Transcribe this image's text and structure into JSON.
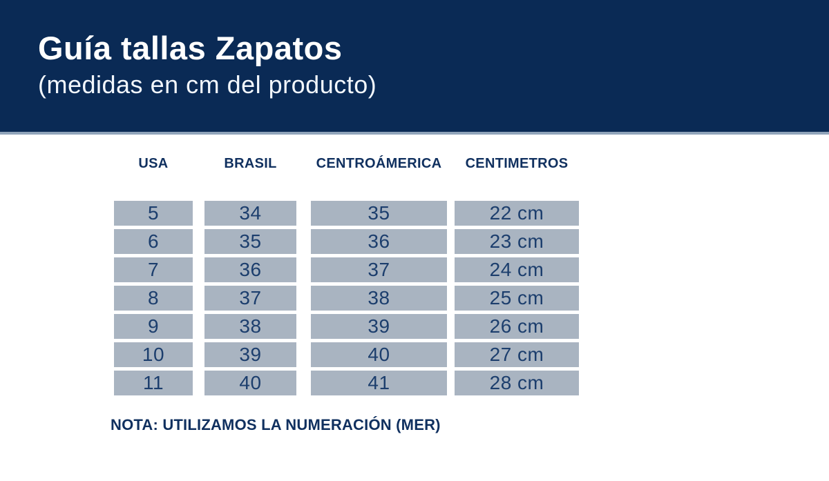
{
  "header": {
    "title": "Guía tallas Zapatos",
    "subtitle": "(medidas en cm del producto)"
  },
  "table": {
    "columns": [
      {
        "label": "USA",
        "values": [
          "5",
          "6",
          "7",
          "8",
          "9",
          "10",
          "11"
        ]
      },
      {
        "label": "BRASIL",
        "values": [
          "34",
          "35",
          "36",
          "37",
          "38",
          "39",
          "40"
        ]
      },
      {
        "label": "CENTROÁMERICA",
        "values": [
          "35",
          "36",
          "37",
          "38",
          "39",
          "40",
          "41"
        ]
      },
      {
        "label": "CENTIMETROS",
        "values": [
          "22 cm",
          "23 cm",
          "24 cm",
          "25 cm",
          "26 cm",
          "27 cm",
          "28 cm"
        ]
      }
    ]
  },
  "note": "NOTA: UTILIZAMOS LA NUMERACIÓN (MER)",
  "colors": {
    "banner_background": "#0a2a55",
    "banner_text": "#ffffff",
    "separator": "#90a4ba",
    "cell_background": "#a9b4c1",
    "cell_text": "#1c3e6d",
    "heading_text": "#10305f",
    "page_background": "#ffffff"
  }
}
